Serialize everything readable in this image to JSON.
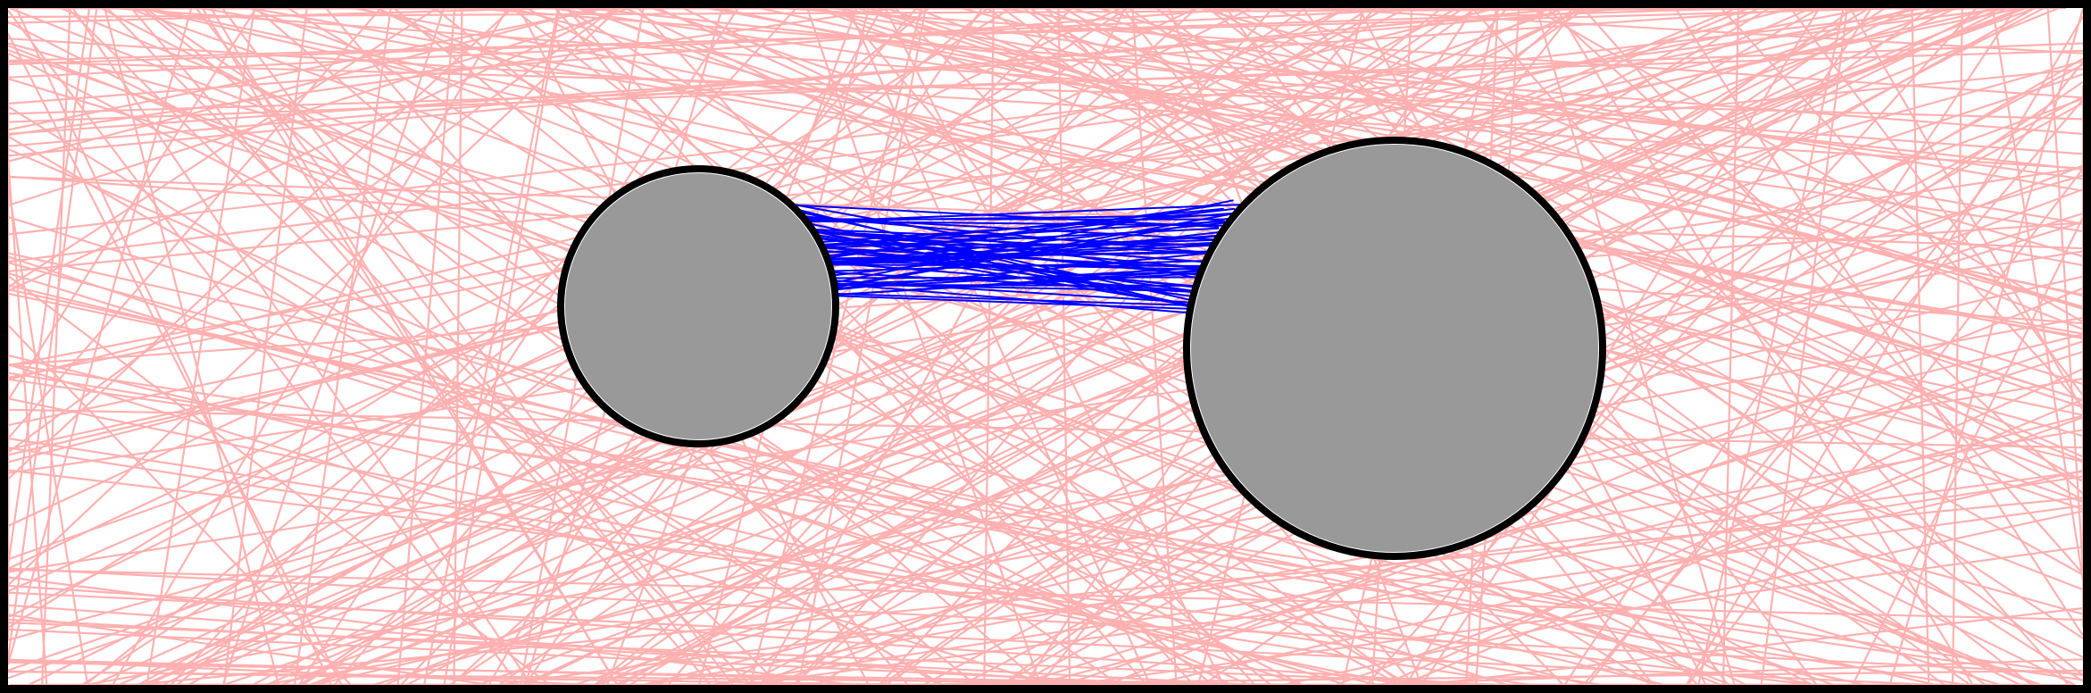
{
  "colors": {
    "frame": "#000000",
    "background": "#ffffff",
    "random_lines": "#ffb0b0",
    "connecting_lines": "#0000ff",
    "disc_fill": "#999999",
    "disc_outline": "#000000",
    "disc_highlight": "#ffffff"
  },
  "shapes": {
    "discs": [
      {
        "name": "left-disc",
        "relative_size": "small"
      },
      {
        "name": "right-disc",
        "relative_size": "large"
      }
    ]
  },
  "line_sets": {
    "background_lines": {
      "description_visible": false,
      "count": 420
    },
    "bridge_lines": {
      "description_visible": false,
      "count": 60
    }
  }
}
